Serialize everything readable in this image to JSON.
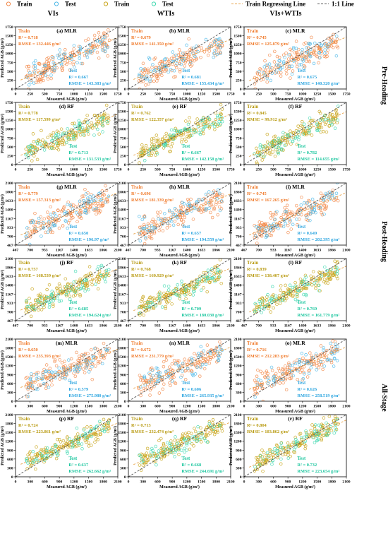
{
  "legend": {
    "items": [
      {
        "label": "Train",
        "kind": "marker",
        "color": "#f2894a"
      },
      {
        "label": "Test",
        "kind": "marker",
        "color": "#4db8e8"
      },
      {
        "label": "Train",
        "kind": "marker",
        "color": "#c8a418"
      },
      {
        "label": "Test",
        "kind": "marker",
        "color": "#3fd8b0"
      },
      {
        "label": "Train Regressing Line",
        "kind": "dash",
        "color": "#e8a34a"
      },
      {
        "label": "1:1 Line",
        "kind": "dash",
        "color": "#555555"
      }
    ]
  },
  "column_headers": [
    "VIs",
    "WTIs",
    "VIs+WTIs"
  ],
  "row_labels": [
    "Pre-Heading",
    "Post-Heading",
    "All-Stage"
  ],
  "axes": {
    "xlabel": "Measured AGB (g/m²)",
    "ylabel": "Predicted AGB (g/m²)"
  },
  "colors": {
    "mlr_train": "#f2894a",
    "mlr_test": "#4db8e8",
    "rf_train": "#c8a418",
    "rf_test": "#3fd8b0",
    "one_to_one": "#555555",
    "stats_text_train_mlr": "#f07a2a",
    "stats_text_test_mlr": "#2ea6e0",
    "stats_text_train_rf": "#b89a10",
    "stats_text_test_rf": "#1fc7a0"
  },
  "chart_data": [
    {
      "type": "scatter",
      "panel": "(a)",
      "model": "MLR",
      "stage": "Pre-Heading",
      "features": "VIs",
      "xlim": [
        0,
        1750
      ],
      "ylim": [
        0,
        1750
      ],
      "ticks": [
        0,
        250,
        500,
        750,
        1000,
        1250,
        1500,
        1750
      ],
      "train": {
        "label": "Train",
        "r2": "R² = 0.718",
        "rmse": "RMSE = 132.446 g/m²"
      },
      "test": {
        "label": "Test",
        "r2": "R² = 0.667",
        "rmse": "RMSE = 143.383 g/m²"
      },
      "fit": {
        "slope": 0.72,
        "intercept": 190
      }
    },
    {
      "type": "scatter",
      "panel": "(b)",
      "model": "MLR",
      "stage": "Pre-Heading",
      "features": "WTIs",
      "xlim": [
        0,
        1750
      ],
      "ylim": [
        0,
        1750
      ],
      "ticks": [
        0,
        250,
        500,
        750,
        1000,
        1250,
        1500,
        1750
      ],
      "train": {
        "label": "Train",
        "r2": "R² = 0.679",
        "rmse": "RMSE = 141.350 g/m²"
      },
      "test": {
        "label": "Test",
        "r2": "R² = 0.681",
        "rmse": "RMSE = 155.434 g/m²"
      },
      "fit": {
        "slope": 0.68,
        "intercept": 210
      }
    },
    {
      "type": "scatter",
      "panel": "(c)",
      "model": "MLR",
      "stage": "Pre-Heading",
      "features": "VIs+WTIs",
      "xlim": [
        0,
        1750
      ],
      "ylim": [
        0,
        1750
      ],
      "ticks": [
        0,
        250,
        500,
        750,
        1000,
        1250,
        1500,
        1750
      ],
      "train": {
        "label": "Train",
        "r2": "R² = 0.745",
        "rmse": "RMSE = 125.879 g/m²"
      },
      "test": {
        "label": "Test",
        "r2": "R² = 0.675",
        "rmse": "RMSE = 140.320 g/m²"
      },
      "fit": {
        "slope": 0.74,
        "intercept": 170
      }
    },
    {
      "type": "scatter",
      "panel": "(d)",
      "model": "RF",
      "stage": "Pre-Heading",
      "features": "VIs",
      "xlim": [
        0,
        1750
      ],
      "ylim": [
        0,
        1750
      ],
      "ticks": [
        0,
        250,
        500,
        750,
        1000,
        1250,
        1500,
        1750
      ],
      "train": {
        "label": "Train",
        "r2": "R² = 0.778",
        "rmse": "RMSE = 117.599 g/m²"
      },
      "test": {
        "label": "Test",
        "r2": "R² = 0.713",
        "rmse": "RMSE = 131.533 g/m²"
      },
      "fit": {
        "slope": 0.7,
        "intercept": 200
      }
    },
    {
      "type": "scatter",
      "panel": "(e)",
      "model": "RF",
      "stage": "Pre-Heading",
      "features": "WTIs",
      "xlim": [
        0,
        1750
      ],
      "ylim": [
        0,
        1750
      ],
      "ticks": [
        0,
        250,
        500,
        750,
        1000,
        1250,
        1500,
        1750
      ],
      "train": {
        "label": "Train",
        "r2": "R² = 0.762",
        "rmse": "RMSE = 122.357 g/m²"
      },
      "test": {
        "label": "Test",
        "r2": "R² = 0.667",
        "rmse": "RMSE = 142.158 g/m²"
      },
      "fit": {
        "slope": 0.7,
        "intercept": 200
      }
    },
    {
      "type": "scatter",
      "panel": "(f)",
      "model": "RF",
      "stage": "Pre-Heading",
      "features": "VIs+WTIs",
      "xlim": [
        0,
        1750
      ],
      "ylim": [
        0,
        1750
      ],
      "ticks": [
        0,
        250,
        500,
        750,
        1000,
        1250,
        1500,
        1750
      ],
      "train": {
        "label": "Train",
        "r2": "R² = 0.845",
        "rmse": "RMSE = 99.912 g/m²"
      },
      "test": {
        "label": "Test",
        "r2": "R² = 0.782",
        "rmse": "RMSE = 114.655 g/m²"
      },
      "fit": {
        "slope": 0.76,
        "intercept": 160
      }
    },
    {
      "type": "scatter",
      "panel": "(g)",
      "model": "MLR",
      "stage": "Post-Heading",
      "features": "VIs",
      "xlim": [
        467,
        2100
      ],
      "ylim": [
        467,
        2100
      ],
      "ticks": [
        467,
        700,
        933,
        1167,
        1400,
        1633,
        1866,
        2100
      ],
      "train": {
        "label": "Train",
        "r2": "R² = 0.779",
        "rmse": "RMSE = 157.313 g/m²"
      },
      "test": {
        "label": "Test",
        "r2": "R² = 0.650",
        "rmse": "RMSE = 196.97 g/m²"
      },
      "fit": {
        "slope": 0.72,
        "intercept": 350
      }
    },
    {
      "type": "scatter",
      "panel": "(h)",
      "model": "MLR",
      "stage": "Post-Heading",
      "features": "WTIs",
      "xlim": [
        467,
        2100
      ],
      "ylim": [
        467,
        2100
      ],
      "ticks": [
        467,
        700,
        933,
        1167,
        1400,
        1633,
        1866,
        2100
      ],
      "train": {
        "label": "Train",
        "r2": "R² = 0.696",
        "rmse": "RMSE = 181.339 g/m²"
      },
      "test": {
        "label": "Test",
        "r2": "R² = 0.657",
        "rmse": "RMSE = 194.559 g/m²"
      },
      "fit": {
        "slope": 0.68,
        "intercept": 410
      }
    },
    {
      "type": "scatter",
      "panel": "(i)",
      "model": "MLR",
      "stage": "Post-Heading",
      "features": "VIs+WTIs",
      "xlim": [
        467,
        2100
      ],
      "ylim": [
        467,
        2100
      ],
      "ticks": [
        467,
        700,
        933,
        1167,
        1400,
        1633,
        1866,
        2100
      ],
      "train": {
        "label": "Train",
        "r2": "R² = 0.745",
        "rmse": "RMSE = 167.265 g/m²"
      },
      "test": {
        "label": "Test",
        "r2": "R² = 0.649",
        "rmse": "RMSE = 202.395 g/m²"
      },
      "fit": {
        "slope": 0.72,
        "intercept": 360
      }
    },
    {
      "type": "scatter",
      "panel": "(j)",
      "model": "RF",
      "stage": "Post-Heading",
      "features": "VIs",
      "xlim": [
        467,
        2100
      ],
      "ylim": [
        467,
        2100
      ],
      "ticks": [
        467,
        700,
        933,
        1167,
        1400,
        1633,
        1866,
        2100
      ],
      "train": {
        "label": "Train",
        "r2": "R² = 0.757",
        "rmse": "RMSE = 168.539 g/m²"
      },
      "test": {
        "label": "Test",
        "r2": "R² = 0.685",
        "rmse": "RMSE = 194.624 g/m²"
      },
      "fit": {
        "slope": 0.7,
        "intercept": 380
      }
    },
    {
      "type": "scatter",
      "panel": "(k)",
      "model": "RF",
      "stage": "Post-Heading",
      "features": "WTIs",
      "xlim": [
        467,
        2100
      ],
      "ylim": [
        467,
        2100
      ],
      "ticks": [
        467,
        700,
        933,
        1167,
        1400,
        1633,
        1866,
        2100
      ],
      "train": {
        "label": "Train",
        "r2": "R² = 0.768",
        "rmse": "RMSE = 160.929 g/m²"
      },
      "test": {
        "label": "Test",
        "r2": "R² = 0.709",
        "rmse": "RMSE = 180.030 g/m²"
      },
      "fit": {
        "slope": 0.72,
        "intercept": 370
      }
    },
    {
      "type": "scatter",
      "panel": "(l)",
      "model": "RF",
      "stage": "Post-Heading",
      "features": "VIs+WTIs",
      "xlim": [
        467,
        2100
      ],
      "ylim": [
        467,
        2100
      ],
      "ticks": [
        467,
        700,
        933,
        1167,
        1400,
        1633,
        1866,
        2100
      ],
      "train": {
        "label": "Train",
        "r2": "R² = 0.839",
        "rmse": "RMSE = 138.407 g/m²"
      },
      "test": {
        "label": "Test",
        "r2": "R² = 0.769",
        "rmse": "RMSE = 161.779 g/m²"
      },
      "fit": {
        "slope": 0.78,
        "intercept": 300
      }
    },
    {
      "type": "scatter",
      "panel": "(m)",
      "model": "MLR",
      "stage": "All-Stage",
      "features": "VIs",
      "xlim": [
        0,
        2100
      ],
      "ylim": [
        0,
        2100
      ],
      "ticks": [
        0,
        300,
        600,
        900,
        1200,
        1500,
        1800,
        2100
      ],
      "train": {
        "label": "Train",
        "r2": "R² = 0.650",
        "rmse": "RMSE = 235.393 g/m²"
      },
      "test": {
        "label": "Test",
        "r2": "R² = 0.579",
        "rmse": "RMSE = 275.980 g/m²"
      },
      "fit": {
        "slope": 0.65,
        "intercept": 330
      }
    },
    {
      "type": "scatter",
      "panel": "(n)",
      "model": "MLR",
      "stage": "All-Stage",
      "features": "WTIs",
      "xlim": [
        0,
        2100
      ],
      "ylim": [
        0,
        2100
      ],
      "ticks": [
        0,
        300,
        600,
        900,
        1200,
        1500,
        1800,
        2100
      ],
      "train": {
        "label": "Train",
        "r2": "R² = 0.672",
        "rmse": "RMSE = 231.779 g/m²"
      },
      "test": {
        "label": "Test",
        "r2": "R² = 0.606",
        "rmse": "RMSE = 265.935 g/m²"
      },
      "fit": {
        "slope": 0.7,
        "intercept": 300
      }
    },
    {
      "type": "scatter",
      "panel": "(o)",
      "model": "MLR",
      "stage": "All-Stage",
      "features": "VIs+WTIs",
      "xlim": [
        0,
        2100
      ],
      "ylim": [
        0,
        2100
      ],
      "ticks": [
        0,
        300,
        600,
        900,
        1200,
        1500,
        1800,
        2100
      ],
      "train": {
        "label": "Train",
        "r2": "R² = 0.716",
        "rmse": "RMSE = 212.283 g/m²"
      },
      "test": {
        "label": "Test",
        "r2": "R² = 0.626",
        "rmse": "RMSE = 258.519 g/m²"
      },
      "fit": {
        "slope": 0.72,
        "intercept": 270
      }
    },
    {
      "type": "scatter",
      "panel": "(p)",
      "model": "RF",
      "stage": "All-Stage",
      "features": "VIs",
      "xlim": [
        0,
        2100
      ],
      "ylim": [
        0,
        2100
      ],
      "ticks": [
        0,
        300,
        600,
        900,
        1200,
        1500,
        1800,
        2100
      ],
      "train": {
        "label": "Train",
        "r2": "R² = 0.724",
        "rmse": "RMSE = 223.861 g/m²"
      },
      "test": {
        "label": "Test",
        "r2": "R² = 0.637",
        "rmse": "RMSE = 262.662 g/m²"
      },
      "fit": {
        "slope": 0.7,
        "intercept": 290
      }
    },
    {
      "type": "scatter",
      "panel": "(q)",
      "model": "RF",
      "stage": "All-Stage",
      "features": "WTIs",
      "xlim": [
        0,
        2100
      ],
      "ylim": [
        0,
        2100
      ],
      "ticks": [
        0,
        300,
        600,
        900,
        1200,
        1500,
        1800,
        2100
      ],
      "train": {
        "label": "Train",
        "r2": "R² = 0.713",
        "rmse": "RMSE = 232.474 g/m²"
      },
      "test": {
        "label": "Test",
        "r2": "R² = 0.668",
        "rmse": "RMSE = 244.691 g/m²"
      },
      "fit": {
        "slope": 0.72,
        "intercept": 280
      }
    },
    {
      "type": "scatter",
      "panel": "(r)",
      "model": "RF",
      "stage": "All-Stage",
      "features": "VIs+WTIs",
      "xlim": [
        0,
        2100
      ],
      "ylim": [
        0,
        2100
      ],
      "ticks": [
        0,
        300,
        600,
        900,
        1200,
        1500,
        1800,
        2100
      ],
      "train": {
        "label": "Train",
        "r2": "R² = 0.804",
        "rmse": "RMSE = 183.862 g/m²"
      },
      "test": {
        "label": "Test",
        "r2": "R² = 0.732",
        "rmse": "RMSE = 223.654 g/m²"
      },
      "fit": {
        "slope": 0.8,
        "intercept": 200
      }
    }
  ]
}
